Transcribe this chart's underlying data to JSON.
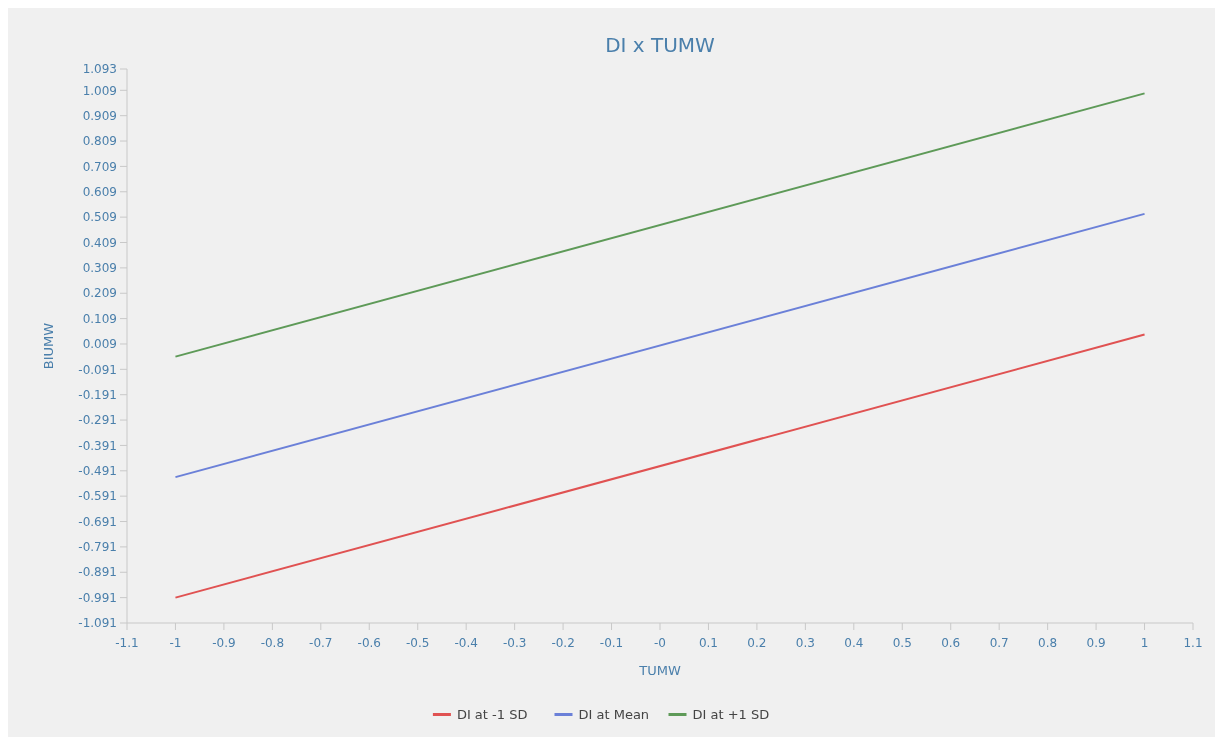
{
  "chart_data": {
    "type": "line",
    "title": "DI x TUMW",
    "xlabel": "TUMW",
    "ylabel": "BIUMW",
    "x": [
      -1,
      1
    ],
    "series": [
      {
        "name": "DI at -1 SD",
        "color": "#e05252",
        "values": [
          -0.991,
          0.046
        ]
      },
      {
        "name": "DI at Mean",
        "color": "#6b80d8",
        "values": [
          -0.516,
          0.522
        ]
      },
      {
        "name": "DI at +1 SD",
        "color": "#5e9a58",
        "values": [
          -0.041,
          0.997
        ]
      }
    ],
    "xlim": [
      -1.1,
      1.1
    ],
    "xticks": [
      -1.1,
      -1,
      -0.9,
      -0.8,
      -0.7,
      -0.6,
      -0.5,
      -0.4,
      -0.3,
      -0.2,
      -0.1,
      {
        "value": 0,
        "label": "-0"
      },
      0.1,
      0.2,
      0.3,
      0.4,
      0.5,
      0.6,
      0.7,
      0.8,
      0.9,
      1,
      1.1
    ],
    "ylim": [
      -1.091,
      1.093
    ],
    "yticks": [
      -1.091,
      -0.991,
      -0.891,
      -0.791,
      -0.691,
      -0.591,
      -0.491,
      -0.391,
      -0.291,
      -0.191,
      -0.091,
      0.009,
      0.109,
      0.209,
      0.309,
      0.409,
      0.509,
      0.609,
      0.709,
      0.809,
      0.909,
      1.009,
      1.093
    ],
    "grid": false,
    "legend": "bottom",
    "marker": "none",
    "line_style": "solid"
  }
}
